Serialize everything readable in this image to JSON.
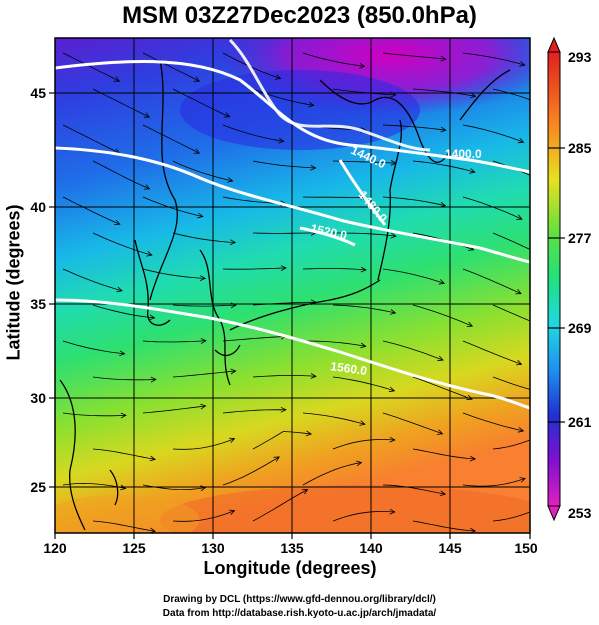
{
  "title": "MSM 03Z27Dec2023 (850.0hPa)",
  "xaxis": {
    "label": "Longitude (degrees)",
    "ticks": [
      "120",
      "125",
      "130",
      "135",
      "140",
      "145",
      "150"
    ]
  },
  "yaxis": {
    "label": "Latitude  (degrees)",
    "ticks": [
      "25",
      "30",
      "35",
      "40",
      "45"
    ]
  },
  "colorbar": {
    "ticks": [
      "293",
      "285",
      "277",
      "269",
      "261",
      "253"
    ]
  },
  "contour_labels": [
    "1400.0",
    "1440.0",
    "1480.0",
    "1520.0",
    "1560.0"
  ],
  "credits": {
    "line1": "Drawing by DCL (https://www.gfd-dennou.org/library/dcl/)",
    "line2": "Data from http://database.rish.kyoto-u.ac.jp/arch/jmadata/"
  },
  "colors": {
    "cold": "#8a00c8",
    "mid": "#20e8d0",
    "warm": "#ff7a20",
    "contour": "#ffffff",
    "streamline": "#000000"
  }
}
